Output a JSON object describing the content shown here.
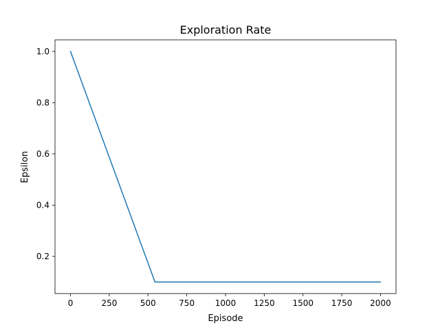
{
  "chart_data": {
    "type": "line",
    "title": "Exploration Rate",
    "xlabel": "Episode",
    "ylabel": "Epsilon",
    "xlim": [
      -100,
      2100
    ],
    "ylim": [
      0.055,
      1.045
    ],
    "xticks": [
      0,
      250,
      500,
      750,
      1000,
      1250,
      1500,
      1750,
      2000
    ],
    "yticks": [
      0.2,
      0.4,
      0.6,
      0.8,
      1.0
    ],
    "xtick_labels": [
      "0",
      "250",
      "500",
      "750",
      "1000",
      "1250",
      "1500",
      "1750",
      "2000"
    ],
    "ytick_labels": [
      "0.2",
      "0.4",
      "0.6",
      "0.8",
      "1.0"
    ],
    "grid": false,
    "series": [
      {
        "color": "#1f77b4",
        "x": [
          0,
          545,
          2000
        ],
        "y": [
          1.0,
          0.1,
          0.1
        ]
      }
    ]
  }
}
